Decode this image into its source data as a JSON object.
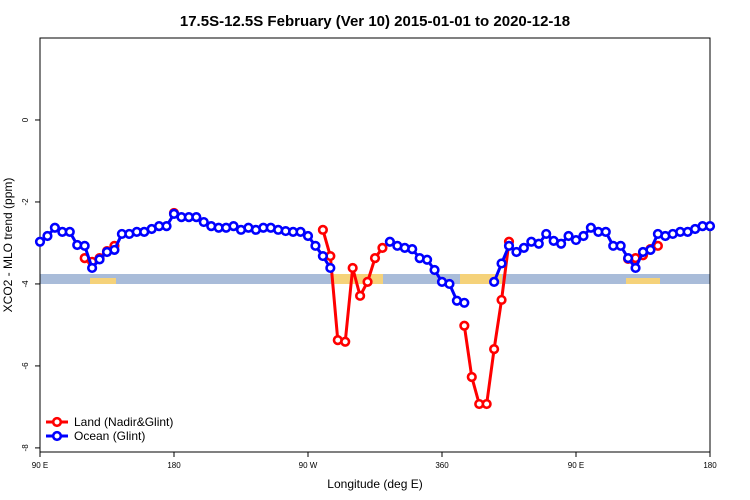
{
  "chart_data": {
    "type": "line",
    "title": "17.5S-12.5S February (Ver 10)   2015-01-01 to 2020-12-18",
    "x_label": "Longitude (deg E)",
    "y_label": "XCO2 - MLO trend (ppm)",
    "x": [
      90,
      95,
      100,
      105,
      110,
      115,
      120,
      125,
      130,
      135,
      140,
      145,
      150,
      155,
      160,
      165,
      170,
      175,
      180,
      185,
      190,
      195,
      200,
      205,
      210,
      215,
      220,
      225,
      230,
      235,
      240,
      245,
      250,
      255,
      260,
      265,
      270,
      275,
      280,
      285,
      290,
      295,
      300,
      305,
      310,
      315,
      320,
      325,
      330,
      335,
      340,
      345,
      350,
      355,
      360,
      365,
      370,
      375,
      380,
      385,
      390,
      395,
      400,
      405,
      410,
      415,
      420,
      425,
      430,
      435,
      440,
      445,
      450,
      455,
      460,
      465,
      470,
      475,
      480,
      485,
      490,
      495,
      500,
      505,
      510,
      515,
      520,
      525,
      530,
      535,
      540
    ],
    "series": [
      {
        "name": "Land (Nadir&Glint)",
        "color": "#ff0000",
        "values": [
          null,
          null,
          null,
          null,
          null,
          null,
          -3.37,
          -3.46,
          -3.37,
          -3.2,
          -3.07,
          null,
          null,
          null,
          null,
          null,
          null,
          null,
          -2.27,
          null,
          null,
          null,
          null,
          null,
          null,
          null,
          null,
          null,
          null,
          null,
          null,
          null,
          null,
          null,
          null,
          null,
          null,
          null,
          -2.68,
          -3.32,
          -5.37,
          -5.41,
          -3.61,
          -4.29,
          -3.95,
          -3.37,
          -3.12,
          null,
          null,
          null,
          null,
          null,
          null,
          null,
          null,
          null,
          null,
          -5.02,
          -6.27,
          -6.93,
          -6.93,
          -5.59,
          -4.39,
          -2.97,
          null,
          null,
          null,
          null,
          null,
          null,
          null,
          null,
          null,
          null,
          null,
          null,
          null,
          null,
          null,
          -3.39,
          -3.37,
          -3.3,
          -3.15,
          -3.07,
          null,
          null,
          null,
          null,
          null,
          null,
          null
        ]
      },
      {
        "name": "Ocean (Glint)",
        "color": "#0000ff",
        "values": [
          -2.97,
          -2.83,
          -2.63,
          -2.73,
          -2.73,
          -3.05,
          -3.07,
          -3.61,
          -3.4,
          -3.22,
          -3.17,
          -2.78,
          -2.78,
          -2.73,
          -2.73,
          -2.66,
          -2.59,
          -2.59,
          -2.29,
          -2.37,
          -2.37,
          -2.37,
          -2.49,
          -2.59,
          -2.63,
          -2.63,
          -2.59,
          -2.68,
          -2.63,
          -2.68,
          -2.63,
          -2.63,
          -2.68,
          -2.71,
          -2.73,
          -2.73,
          -2.83,
          -3.07,
          -3.32,
          -3.61,
          null,
          null,
          null,
          null,
          null,
          null,
          null,
          -2.97,
          -3.07,
          -3.12,
          -3.15,
          -3.37,
          -3.41,
          -3.66,
          -3.95,
          -4.0,
          -4.41,
          -4.46,
          null,
          null,
          null,
          -3.95,
          -3.5,
          -3.07,
          -3.22,
          -3.12,
          -2.97,
          -3.02,
          -2.78,
          -2.95,
          -3.02,
          -2.83,
          -2.93,
          -2.83,
          -2.63,
          -2.73,
          -2.73,
          -3.07,
          -3.07,
          -3.37,
          -3.61,
          -3.22,
          -3.17,
          -2.78,
          -2.83,
          -2.78,
          -2.73,
          -2.73,
          -2.66,
          -2.59,
          -2.59
        ]
      }
    ],
    "xlim": [
      90,
      540
    ],
    "xticks": [
      {
        "value": 90,
        "label": "90 E"
      },
      180,
      {
        "value": 270,
        "label": "90 W"
      },
      360,
      {
        "value": 450,
        "label": "90 E"
      },
      {
        "value": 540,
        "label": "180"
      }
    ],
    "ylim": [
      -8.1,
      2
    ],
    "yticks": [
      0,
      -2,
      -4,
      -6,
      -8
    ],
    "legend": "bottom-left"
  }
}
